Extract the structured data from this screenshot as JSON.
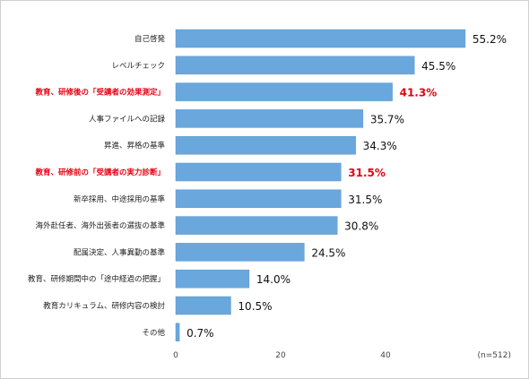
{
  "chart_data": {
    "type": "bar",
    "orientation": "horizontal",
    "categories": [
      "自己啓発",
      "レベルチェック",
      "教育、研修後の「受講者の効果測定」",
      "人事ファイルへの記録",
      "昇進、昇格の基準",
      "教育、研修前の「受講者の実力診断」",
      "新卒採用、中途採用の基準",
      "海外赴任者、海外出張者の選抜の基準",
      "配属決定、人事異動の基準",
      "教育、研修期間中の「途中経過の把握」",
      "教育カリキュラム、研修内容の検討",
      "その他"
    ],
    "values": [
      55.2,
      45.5,
      41.3,
      35.7,
      34.3,
      31.5,
      31.5,
      30.8,
      24.5,
      14.0,
      10.5,
      0.7
    ],
    "value_labels": [
      "55.2%",
      "45.5%",
      "41.3%",
      "35.7%",
      "34.3%",
      "31.5%",
      "31.5%",
      "30.8%",
      "24.5%",
      "14.0%",
      "10.5%",
      "0.7%"
    ],
    "highlighted": [
      false,
      false,
      true,
      false,
      false,
      true,
      false,
      false,
      false,
      false,
      false,
      false
    ],
    "x_ticks": [
      "0",
      "20",
      "40"
    ],
    "xlim": [
      0,
      60
    ],
    "note": "(n=512)",
    "colors": {
      "bar": "#6aa7dc",
      "bar_border": "#5b97cc",
      "highlight_text": "#e60012",
      "text": "#222222"
    }
  }
}
